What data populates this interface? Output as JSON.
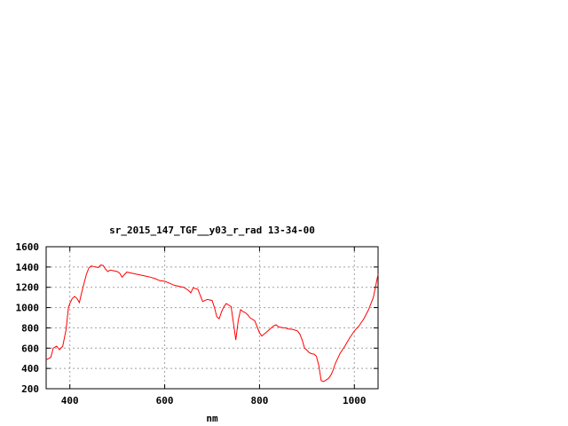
{
  "chart_data": {
    "type": "line",
    "title": "sr_2015_147_TGF__y03_r_rad 13-34-00",
    "xlabel": "nm",
    "ylabel": "",
    "xlim": [
      350,
      1050
    ],
    "ylim": [
      200,
      1600
    ],
    "xticks": [
      400,
      600,
      800,
      1000
    ],
    "yticks": [
      200,
      400,
      600,
      800,
      1000,
      1200,
      1400,
      1600
    ],
    "grid": true,
    "series_color": "#ff0000",
    "series": [
      {
        "x": [
          350,
          360,
          365,
          372,
          378,
          385,
          392,
          397,
          400,
          405,
          410,
          415,
          420,
          425,
          430,
          435,
          440,
          445,
          450,
          455,
          460,
          465,
          470,
          475,
          480,
          485,
          490,
          495,
          500,
          505,
          510,
          520,
          530,
          540,
          550,
          560,
          570,
          580,
          590,
          600,
          610,
          620,
          630,
          640,
          650,
          655,
          660,
          670,
          680,
          685,
          690,
          700,
          705,
          710,
          715,
          720,
          725,
          730,
          740,
          745,
          750,
          755,
          760,
          765,
          770,
          775,
          780,
          790,
          800,
          805,
          810,
          820,
          830,
          835,
          840,
          850,
          855,
          860,
          870,
          880,
          885,
          890,
          895,
          900,
          905,
          910,
          915,
          920,
          925,
          930,
          935,
          940,
          945,
          950,
          955,
          960,
          970,
          980,
          990,
          1000,
          1010,
          1020,
          1030,
          1040,
          1050
        ],
        "y": [
          485,
          510,
          600,
          620,
          585,
          620,
          780,
          1000,
          1040,
          1090,
          1110,
          1090,
          1050,
          1150,
          1240,
          1330,
          1390,
          1410,
          1405,
          1400,
          1395,
          1420,
          1415,
          1380,
          1355,
          1370,
          1365,
          1360,
          1355,
          1340,
          1300,
          1350,
          1340,
          1330,
          1320,
          1310,
          1300,
          1285,
          1265,
          1260,
          1240,
          1220,
          1210,
          1200,
          1170,
          1145,
          1195,
          1180,
          1060,
          1070,
          1080,
          1070,
          1000,
          910,
          890,
          960,
          1010,
          1040,
          1010,
          850,
          680,
          870,
          980,
          960,
          950,
          930,
          900,
          870,
          750,
          720,
          740,
          780,
          820,
          830,
          810,
          800,
          800,
          790,
          785,
          770,
          740,
          680,
          600,
          580,
          555,
          545,
          540,
          520,
          430,
          280,
          270,
          285,
          300,
          330,
          380,
          450,
          550,
          620,
          700,
          770,
          820,
          890,
          980,
          1100,
          1330
        ]
      }
    ]
  }
}
